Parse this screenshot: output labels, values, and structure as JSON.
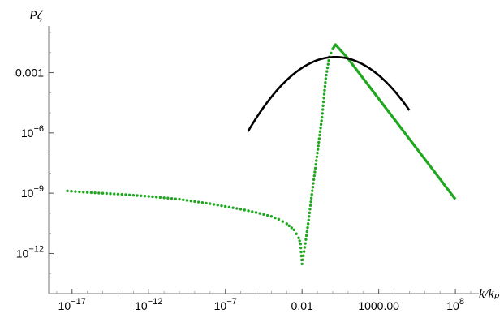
{
  "chart_data": {
    "type": "line",
    "title": "",
    "ylabel": "Pζ",
    "xlabel": "k/kₚ",
    "xscale": "log",
    "yscale": "log",
    "xlim": [
      3e-19,
      1000000000.0
    ],
    "ylim": [
      1e-14,
      0.1
    ],
    "grid": false,
    "x_ticks": [
      {
        "value": 1e-17,
        "label": "10",
        "sup": "−17"
      },
      {
        "value": 1e-12,
        "label": "10",
        "sup": "−12"
      },
      {
        "value": 1e-07,
        "label": "10",
        "sup": "−7"
      },
      {
        "value": 0.01,
        "label": "0.01",
        "sup": ""
      },
      {
        "value": 1000,
        "label": "1000.00",
        "sup": ""
      },
      {
        "value": 100000000.0,
        "label": "10",
        "sup": "8"
      }
    ],
    "y_ticks": [
      {
        "value": 0.001,
        "label": "0.001",
        "sup": ""
      },
      {
        "value": 1e-06,
        "label": "10",
        "sup": "−6"
      },
      {
        "value": 1e-09,
        "label": "10",
        "sup": "−9"
      },
      {
        "value": 1e-12,
        "label": "10",
        "sup": "−12"
      }
    ],
    "series": [
      {
        "color": "#1fa81f",
        "style": "dotted",
        "x": [
          5e-18,
          1e-16,
          1e-14,
          1e-12,
          1e-10,
          1e-08,
          1e-06,
          1e-05,
          0.0001,
          0.0003,
          0.001,
          0.003,
          0.006,
          0.008,
          0.01,
          0.015,
          0.025,
          0.05,
          0.1,
          0.2,
          0.35,
          0.6,
          1.0
        ],
        "y": [
          1.3e-09,
          1.1e-09,
          9e-10,
          7e-10,
          5e-10,
          3e-10,
          1.6e-10,
          1.1e-10,
          7e-11,
          5e-11,
          3e-11,
          1.5e-11,
          6e-12,
          3e-12,
          3e-13,
          2e-12,
          3e-11,
          2e-09,
          1e-07,
          6e-06,
          0.0005,
          0.006,
          0.015
        ]
      },
      {
        "color": "#1fa81f",
        "style": "solid",
        "x": [
          1.0,
          1.5,
          3,
          10,
          100,
          1000,
          10000.0,
          100000.0,
          1000000.0,
          10000000.0,
          100000000.0
        ],
        "y": [
          0.015,
          0.025,
          0.014,
          0.005,
          0.0005,
          5e-05,
          5e-06,
          5e-07,
          5e-08,
          5e-09,
          5e-10
        ]
      },
      {
        "color": "#000000",
        "style": "solid",
        "gaussian": {
          "peak_x": 1.5,
          "peak_y": 0.006,
          "sigma_log10": 1.38
        },
        "x_range": [
          3e-06,
          100000.0
        ]
      }
    ]
  }
}
